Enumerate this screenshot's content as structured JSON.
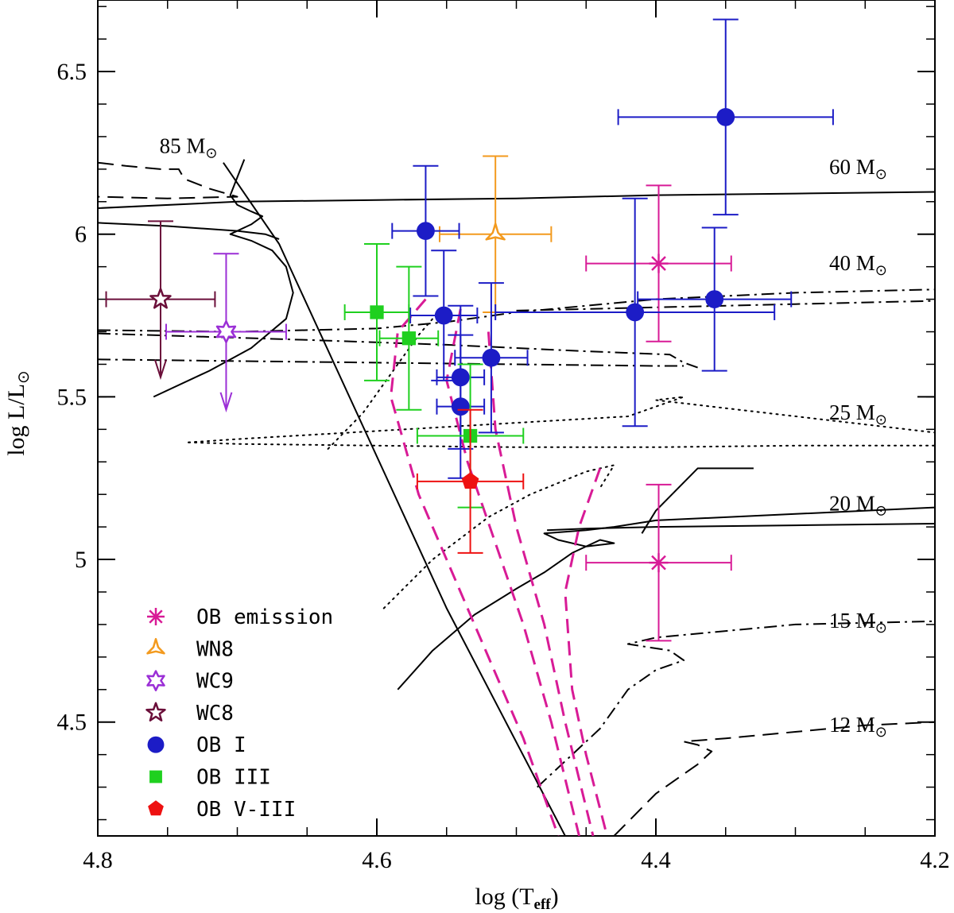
{
  "chart_data": {
    "type": "scatter",
    "title": "",
    "xlabel": "log (T",
    "xlabel_sub": "eff",
    "xlabel_close": ")",
    "ylabel": "log L/L",
    "xlim": [
      4.8,
      4.2
    ],
    "ylim": [
      4.15,
      6.72
    ],
    "xticks": [
      {
        "value": 4.8,
        "label": "4.8"
      },
      {
        "value": 4.6,
        "label": "4.6"
      },
      {
        "value": 4.4,
        "label": "4.4"
      },
      {
        "value": 4.2,
        "label": "4.2"
      }
    ],
    "yticks": [
      {
        "value": 4.5,
        "label": "4.5"
      },
      {
        "value": 5.0,
        "label": "5"
      },
      {
        "value": 5.5,
        "label": "5.5"
      },
      {
        "value": 6.0,
        "label": "6"
      },
      {
        "value": 6.5,
        "label": "6.5"
      }
    ],
    "mass_labels": [
      {
        "text": "85 M",
        "x": 4.735,
        "y": 6.25
      },
      {
        "text": "60 M",
        "x": 4.255,
        "y": 6.185
      },
      {
        "text": "40 M",
        "x": 4.255,
        "y": 5.89
      },
      {
        "text": "25 M",
        "x": 4.255,
        "y": 5.43
      },
      {
        "text": "20 M",
        "x": 4.255,
        "y": 5.15
      },
      {
        "text": "15 M",
        "x": 4.255,
        "y": 4.79
      },
      {
        "text": "12 M",
        "x": 4.255,
        "y": 4.47
      }
    ],
    "legend": [
      {
        "label": "OB emission",
        "marker": "asterisk",
        "color": "#D81B96"
      },
      {
        "label": "WN8",
        "marker": "tri-open",
        "color": "#F39A1E"
      },
      {
        "label": "WC9",
        "marker": "star6-open",
        "color": "#9B2FD6"
      },
      {
        "label": "WC8",
        "marker": "star5-open",
        "color": "#6B0F3A"
      },
      {
        "label": "OB I",
        "marker": "circle",
        "color": "#1C1CC6"
      },
      {
        "label": "OB III",
        "marker": "square",
        "color": "#1FD01F"
      },
      {
        "label": "OB V-III",
        "marker": "pentagon",
        "color": "#EE1111"
      }
    ],
    "series": [
      {
        "name": "OB emission",
        "marker": "asterisk",
        "color": "#D81B96",
        "points": [
          {
            "x": 4.398,
            "y": 5.91,
            "xerr": 0.052,
            "yerr": 0.24
          },
          {
            "x": 4.398,
            "y": 4.99,
            "xerr": 0.052,
            "yerr": 0.24
          }
        ]
      },
      {
        "name": "WN8",
        "marker": "tri-open",
        "color": "#F39A1E",
        "points": [
          {
            "x": 4.515,
            "y": 6.0,
            "xerr": 0.04,
            "yerr": 0.24
          }
        ]
      },
      {
        "name": "WC9",
        "marker": "star6-open",
        "color": "#9B2FD6",
        "points": [
          {
            "x": 4.708,
            "y": 5.7,
            "xerr": 0.043,
            "yerr": 0.24,
            "upper_limit": true
          }
        ]
      },
      {
        "name": "WC8",
        "marker": "star5-open",
        "color": "#6B0F3A",
        "points": [
          {
            "x": 4.755,
            "y": 5.8,
            "xerr": 0.039,
            "yerr": 0.24,
            "upper_limit": true
          }
        ]
      },
      {
        "name": "OB I",
        "marker": "circle",
        "color": "#1C1CC6",
        "points": [
          {
            "x": 4.35,
            "y": 6.36,
            "xerr": 0.077,
            "yerr": 0.3
          },
          {
            "x": 4.565,
            "y": 6.01,
            "xerr": 0.024,
            "yerr": 0.2
          },
          {
            "x": 4.552,
            "y": 5.75,
            "xerr": 0.024,
            "yerr": 0.2
          },
          {
            "x": 4.415,
            "y": 5.76,
            "xerr": 0.1,
            "yerr": 0.35
          },
          {
            "x": 4.358,
            "y": 5.8,
            "xerr": 0.055,
            "yerr": 0.22
          },
          {
            "x": 4.518,
            "y": 5.62,
            "xerr": 0.026,
            "yerr": 0.23
          },
          {
            "x": 4.54,
            "y": 5.56,
            "xerr": 0.017,
            "yerr": 0.22
          },
          {
            "x": 4.54,
            "y": 5.47,
            "xerr": 0.017,
            "yerr": 0.22
          }
        ]
      },
      {
        "name": "OB III",
        "marker": "square",
        "color": "#1FD01F",
        "points": [
          {
            "x": 4.6,
            "y": 5.76,
            "xerr": 0.023,
            "yerr": 0.21
          },
          {
            "x": 4.577,
            "y": 5.68,
            "xerr": 0.021,
            "yerr": 0.22
          },
          {
            "x": 4.533,
            "y": 5.38,
            "xerr": 0.038,
            "yerr": 0.22
          }
        ]
      },
      {
        "name": "OB V-III",
        "marker": "pentagon",
        "color": "#EE1111",
        "points": [
          {
            "x": 4.533,
            "y": 5.24,
            "xerr": 0.038,
            "yerr": 0.22
          }
        ]
      }
    ],
    "tracks": [
      {
        "name": "85",
        "style": "solid",
        "points": [
          [
            4.695,
            6.23
          ],
          [
            4.705,
            6.12
          ],
          [
            4.7,
            6.09
          ],
          [
            4.69,
            6.07
          ],
          [
            4.682,
            6.055
          ],
          [
            4.69,
            6.03
          ],
          [
            4.705,
            6.0
          ],
          [
            4.69,
            5.98
          ],
          [
            4.675,
            5.95
          ],
          [
            4.665,
            5.9
          ],
          [
            4.66,
            5.82
          ],
          [
            4.665,
            5.74
          ],
          [
            4.69,
            5.65
          ],
          [
            4.72,
            5.58
          ],
          [
            4.76,
            5.5
          ]
        ]
      },
      {
        "name": "85-dashed",
        "style": "dashed",
        "points": [
          [
            4.8,
            6.22
          ],
          [
            4.78,
            6.21
          ],
          [
            4.755,
            6.2
          ],
          [
            4.742,
            6.2
          ],
          [
            4.738,
            6.17
          ],
          [
            4.72,
            6.14
          ],
          [
            4.7,
            6.115
          ],
          [
            4.75,
            6.11
          ],
          [
            4.8,
            6.115
          ]
        ]
      },
      {
        "name": "60",
        "style": "solid",
        "points": [
          [
            4.8,
            6.08
          ],
          [
            4.7,
            6.1
          ],
          [
            4.6,
            6.105
          ],
          [
            4.5,
            6.11
          ],
          [
            4.4,
            6.12
          ],
          [
            4.3,
            6.125
          ],
          [
            4.2,
            6.13
          ]
        ]
      },
      {
        "name": "60b",
        "style": "solid",
        "points": [
          [
            4.8,
            6.035
          ],
          [
            4.75,
            6.025
          ],
          [
            4.7,
            6.01
          ],
          [
            4.68,
            6.0
          ],
          [
            4.67,
            5.985
          ]
        ]
      },
      {
        "name": "40",
        "style": "dashdot",
        "points": [
          [
            4.8,
            5.705
          ],
          [
            4.7,
            5.7
          ],
          [
            4.6,
            5.71
          ],
          [
            4.55,
            5.73
          ],
          [
            4.5,
            5.76
          ],
          [
            4.45,
            5.78
          ],
          [
            4.4,
            5.8
          ],
          [
            4.3,
            5.82
          ],
          [
            4.2,
            5.83
          ]
        ]
      },
      {
        "name": "40b",
        "style": "dashdot",
        "points": [
          [
            4.8,
            5.695
          ],
          [
            4.65,
            5.675
          ],
          [
            4.55,
            5.66
          ],
          [
            4.45,
            5.64
          ],
          [
            4.39,
            5.63
          ],
          [
            4.38,
            5.605
          ],
          [
            4.37,
            5.59
          ]
        ]
      },
      {
        "name": "40c",
        "style": "dashdot",
        "points": [
          [
            4.8,
            5.615
          ],
          [
            4.7,
            5.61
          ],
          [
            4.6,
            5.605
          ],
          [
            4.5,
            5.6
          ],
          [
            4.4,
            5.595
          ],
          [
            4.38,
            5.595
          ]
        ]
      },
      {
        "name": "40d",
        "style": "dashdot",
        "points": [
          [
            4.5,
            5.765
          ],
          [
            4.4,
            5.775
          ],
          [
            4.3,
            5.785
          ],
          [
            4.2,
            5.795
          ]
        ]
      },
      {
        "name": "25",
        "style": "dotted",
        "points": [
          [
            4.735,
            5.36
          ],
          [
            4.7,
            5.355
          ],
          [
            4.6,
            5.35
          ],
          [
            4.5,
            5.345
          ],
          [
            4.4,
            5.345
          ],
          [
            4.3,
            5.35
          ],
          [
            4.2,
            5.35
          ]
        ]
      },
      {
        "name": "25b",
        "style": "dotted",
        "points": [
          [
            4.735,
            5.36
          ],
          [
            4.7,
            5.37
          ],
          [
            4.6,
            5.395
          ],
          [
            4.5,
            5.42
          ],
          [
            4.42,
            5.44
          ],
          [
            4.38,
            5.5
          ],
          [
            4.4,
            5.49
          ],
          [
            4.2,
            5.39
          ]
        ]
      },
      {
        "name": "25c",
        "style": "dotted",
        "points": [
          [
            4.635,
            5.34
          ],
          [
            4.61,
            5.45
          ],
          [
            4.585,
            5.6
          ],
          [
            4.57,
            5.69
          ],
          [
            4.56,
            5.74
          ]
        ]
      },
      {
        "name": "25d",
        "style": "dotted",
        "points": [
          [
            4.595,
            4.85
          ],
          [
            4.56,
            5.0
          ],
          [
            4.52,
            5.13
          ],
          [
            4.49,
            5.2
          ],
          [
            4.45,
            5.27
          ],
          [
            4.43,
            5.29
          ],
          [
            4.44,
            5.22
          ]
        ]
      },
      {
        "name": "20",
        "style": "solid",
        "points": [
          [
            4.585,
            4.6
          ],
          [
            4.56,
            4.72
          ],
          [
            4.53,
            4.83
          ],
          [
            4.5,
            4.91
          ],
          [
            4.48,
            4.96
          ],
          [
            4.46,
            5.02
          ],
          [
            4.44,
            5.06
          ],
          [
            4.43,
            5.05
          ],
          [
            4.45,
            5.04
          ],
          [
            4.47,
            5.06
          ],
          [
            4.48,
            5.08
          ],
          [
            4.45,
            5.09
          ],
          [
            4.43,
            5.1
          ],
          [
            4.4,
            5.12
          ],
          [
            4.3,
            5.14
          ],
          [
            4.2,
            5.16
          ]
        ]
      },
      {
        "name": "20b",
        "style": "solid",
        "points": [
          [
            4.478,
            5.09
          ],
          [
            4.45,
            5.095
          ],
          [
            4.4,
            5.1
          ],
          [
            4.3,
            5.105
          ],
          [
            4.2,
            5.11
          ]
        ]
      },
      {
        "name": "20c",
        "style": "solid",
        "points": [
          [
            4.41,
            5.08
          ],
          [
            4.4,
            5.15
          ],
          [
            4.37,
            5.28
          ],
          [
            4.33,
            5.28
          ]
        ]
      },
      {
        "name": "15",
        "style": "dashdot",
        "points": [
          [
            4.485,
            4.3
          ],
          [
            4.46,
            4.4
          ],
          [
            4.44,
            4.48
          ],
          [
            4.42,
            4.6
          ],
          [
            4.4,
            4.66
          ],
          [
            4.38,
            4.69
          ],
          [
            4.39,
            4.72
          ],
          [
            4.42,
            4.74
          ],
          [
            4.4,
            4.76
          ],
          [
            4.3,
            4.8
          ],
          [
            4.2,
            4.81
          ]
        ]
      },
      {
        "name": "12",
        "style": "dashed",
        "points": [
          [
            4.43,
            4.15
          ],
          [
            4.4,
            4.28
          ],
          [
            4.37,
            4.37
          ],
          [
            4.36,
            4.41
          ],
          [
            4.37,
            4.43
          ],
          [
            4.38,
            4.44
          ],
          [
            4.35,
            4.45
          ],
          [
            4.3,
            4.47
          ],
          [
            4.25,
            4.49
          ],
          [
            4.2,
            4.5
          ]
        ]
      }
    ],
    "zams": {
      "style": "solid",
      "points": [
        [
          4.71,
          6.22
        ],
        [
          4.67,
          5.97
        ],
        [
          4.55,
          4.85
        ],
        [
          4.465,
          4.15
        ]
      ]
    },
    "isochrones": [
      {
        "color": "#D81B96",
        "points": [
          [
            4.565,
            5.8
          ],
          [
            4.585,
            5.7
          ],
          [
            4.59,
            5.5
          ],
          [
            4.57,
            5.2
          ],
          [
            4.545,
            4.95
          ],
          [
            4.52,
            4.7
          ],
          [
            4.495,
            4.45
          ],
          [
            4.47,
            4.15
          ]
        ]
      },
      {
        "color": "#D81B96",
        "points": [
          [
            4.54,
            5.77
          ],
          [
            4.55,
            5.55
          ],
          [
            4.535,
            5.3
          ],
          [
            4.515,
            5.05
          ],
          [
            4.495,
            4.8
          ],
          [
            4.475,
            4.5
          ],
          [
            4.455,
            4.15
          ]
        ]
      },
      {
        "color": "#D81B96",
        "points": [
          [
            4.52,
            5.7
          ],
          [
            4.515,
            5.4
          ],
          [
            4.5,
            5.1
          ],
          [
            4.48,
            4.8
          ],
          [
            4.465,
            4.5
          ],
          [
            4.445,
            4.15
          ]
        ]
      },
      {
        "color": "#D81B96",
        "points": [
          [
            4.44,
            5.28
          ],
          [
            4.455,
            5.1
          ],
          [
            4.465,
            4.9
          ],
          [
            4.46,
            4.6
          ],
          [
            4.45,
            4.4
          ],
          [
            4.435,
            4.15
          ]
        ]
      }
    ]
  }
}
